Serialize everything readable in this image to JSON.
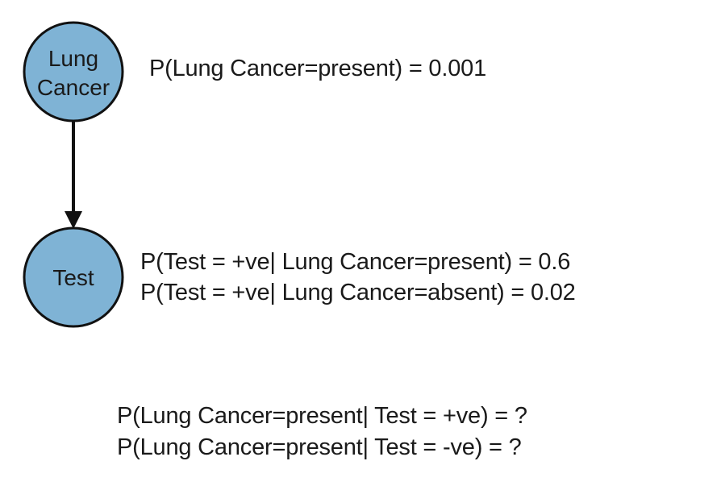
{
  "nodes": {
    "lung_cancer": {
      "line1": "Lung",
      "line2": "Cancer"
    },
    "test": {
      "label": "Test"
    }
  },
  "colors": {
    "node_fill": "#7fb3d5",
    "node_stroke": "#111111",
    "edge": "#111111"
  },
  "probabilities": {
    "prior": "P(Lung Cancer=present) = 0.001",
    "test_given_present": "P(Test = +ve| Lung Cancer=present) = 0.6",
    "test_given_absent": "P(Test = +ve| Lung Cancer=absent) = 0.02"
  },
  "questions": {
    "q1": "P(Lung Cancer=present| Test = +ve) = ?",
    "q2": "P(Lung Cancer=present| Test = -ve) = ?"
  }
}
